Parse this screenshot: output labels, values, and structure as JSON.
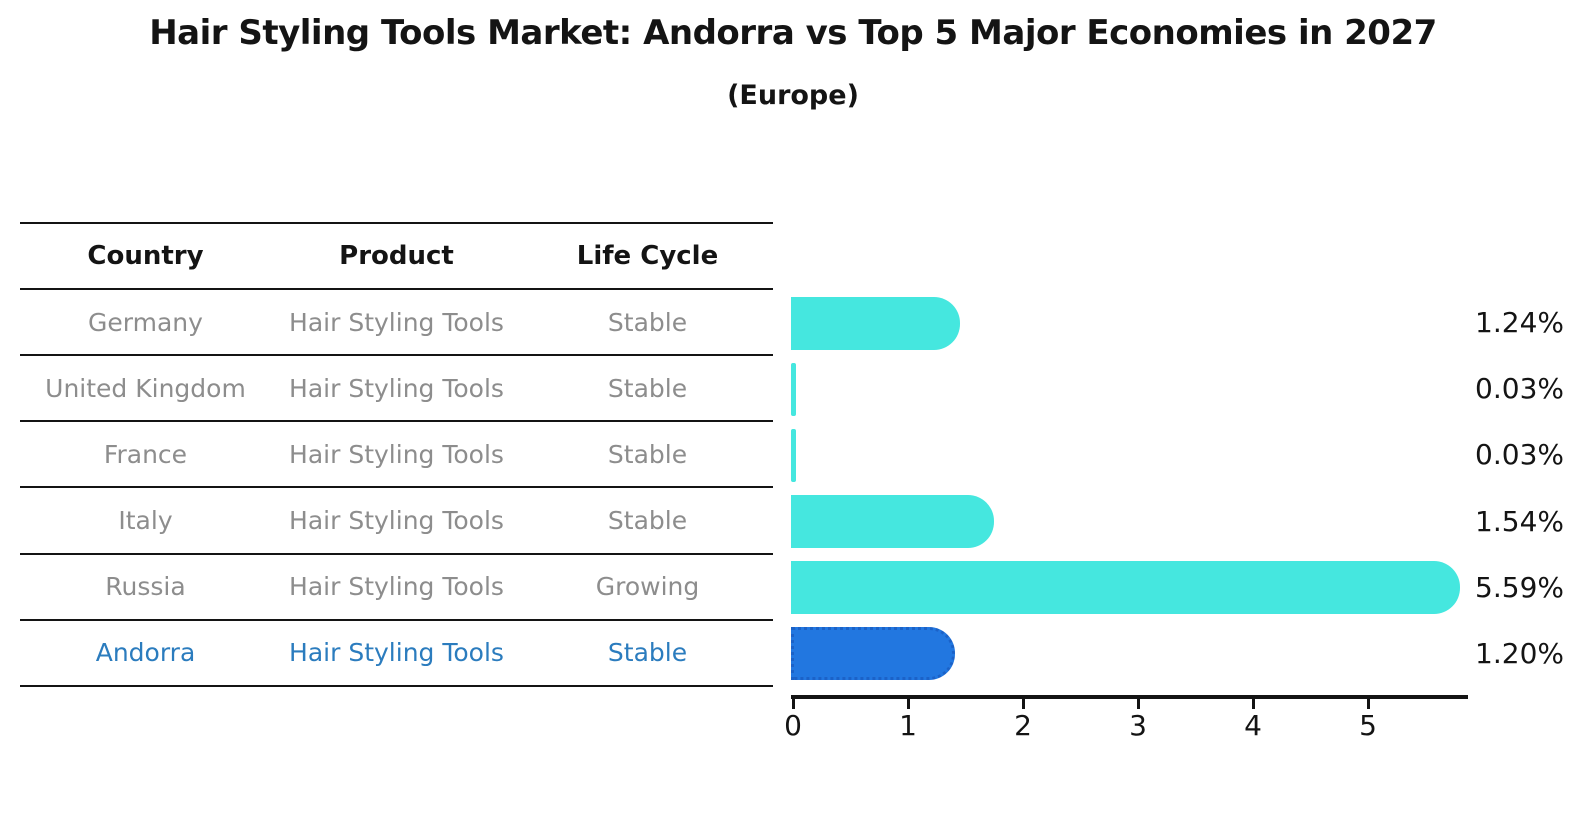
{
  "title": "Hair Styling Tools Market: Andorra vs Top 5 Major Economies in 2027",
  "subtitle": "(Europe)",
  "table": {
    "headers": [
      "Country",
      "Product",
      "Life Cycle"
    ],
    "rows": [
      {
        "country": "Germany",
        "product": "Hair Styling Tools",
        "life_cycle": "Stable",
        "highlight": false
      },
      {
        "country": "United Kingdom",
        "product": "Hair Styling Tools",
        "life_cycle": "Stable",
        "highlight": false
      },
      {
        "country": "France",
        "product": "Hair Styling Tools",
        "life_cycle": "Stable",
        "highlight": false
      },
      {
        "country": "Italy",
        "product": "Hair Styling Tools",
        "life_cycle": "Stable",
        "highlight": false
      },
      {
        "country": "Russia",
        "product": "Hair Styling Tools",
        "life_cycle": "Growing",
        "highlight": false
      },
      {
        "country": "Andorra",
        "product": "Hair Styling Tools",
        "life_cycle": "Stable",
        "highlight": true
      }
    ]
  },
  "chart_data": {
    "type": "bar",
    "orientation": "horizontal",
    "title": "Hair Styling Tools Market: Andorra vs Top 5 Major Economies in 2027 (Europe)",
    "categories": [
      "Germany",
      "United Kingdom",
      "France",
      "Italy",
      "Russia",
      "Andorra"
    ],
    "values": [
      1.24,
      0.03,
      0.03,
      1.54,
      5.59,
      1.2
    ],
    "value_labels": [
      "1.24%",
      "0.03%",
      "0.03%",
      "1.54%",
      "5.59%",
      "1.20%"
    ],
    "x_ticks": [
      0,
      1,
      2,
      3,
      4,
      5
    ],
    "xlim": [
      0,
      5.87
    ],
    "grid": false,
    "highlight_index": 5,
    "bar_color": "#45e7df",
    "highlight_bar_color": "#2277e0",
    "highlight_border_color": "#1b62c8"
  },
  "colors": {
    "row_text": "#8d8d8d",
    "highlight_text": "#2b7cbe",
    "axis": "#141414"
  }
}
